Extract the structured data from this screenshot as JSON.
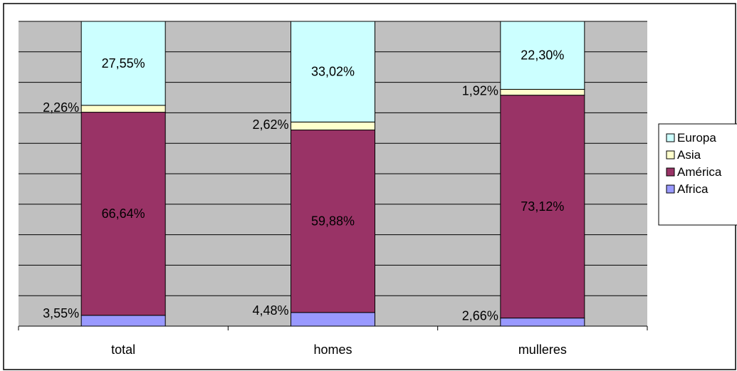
{
  "chart_data": {
    "type": "bar",
    "stacked": true,
    "percent_stacked": true,
    "categories": [
      "total",
      "homes",
      "mulleres"
    ],
    "series": [
      {
        "name": "Africa",
        "values": [
          3.55,
          4.48,
          2.66
        ],
        "labels": [
          "3,55%",
          "4,48%",
          "2,66%"
        ],
        "color": "#9999ff"
      },
      {
        "name": "América",
        "values": [
          66.64,
          59.88,
          73.12
        ],
        "labels": [
          "66,64%",
          "59,88%",
          "73,12%"
        ],
        "color": "#993366"
      },
      {
        "name": "Asia",
        "values": [
          2.26,
          2.62,
          1.92
        ],
        "labels": [
          "2,26%",
          "2,62%",
          "1,92%"
        ],
        "color": "#ffffcc"
      },
      {
        "name": "Europa",
        "values": [
          27.55,
          33.02,
          22.3
        ],
        "labels": [
          "27,55%",
          "33,02%",
          "22,30%"
        ],
        "color": "#ccffff"
      }
    ],
    "ylim": [
      0,
      100
    ],
    "grid": true,
    "legend": "right",
    "colors": {
      "plot_background": "#c0c0c0",
      "gridline": "#000000",
      "border": "#000000"
    }
  }
}
